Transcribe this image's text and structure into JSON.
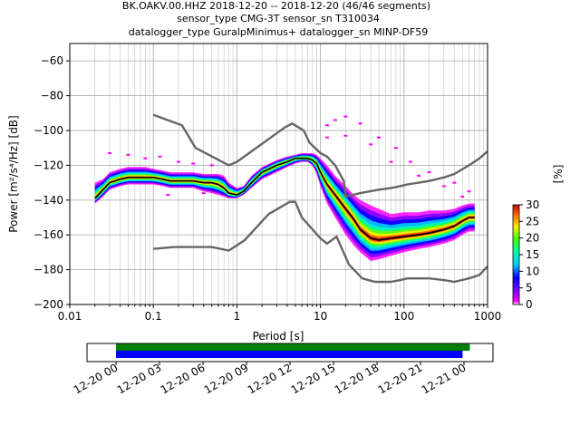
{
  "title": {
    "line1": "BK.OAKV.00.HHZ   2018-12-20 -- 2018-12-20  (46/46 segments)",
    "line2": "sensor_type CMG-3T sensor_sn T310034",
    "line3": "datalogger_type GuralpMinimus+ datalogger_sn MINP-DF59"
  },
  "chart_data": [
    {
      "type": "heatmap",
      "xlabel": "Period [s]",
      "ylabel": "Power [m²/s⁴/Hz] [dB]",
      "x_scale": "log",
      "xlim": [
        0.01,
        1000
      ],
      "ylim": [
        -200,
        -50
      ],
      "x_ticks": [
        0.01,
        0.1,
        1,
        10,
        100,
        1000
      ],
      "x_tick_labels": [
        "0.01",
        "0.1",
        "1",
        "10",
        "100",
        "1000"
      ],
      "y_ticks": [
        -60,
        -80,
        -100,
        -120,
        -140,
        -160,
        -180,
        -200
      ],
      "y_tick_labels": [
        "−60",
        "−80",
        "−100",
        "−120",
        "−140",
        "−160",
        "−180",
        "−200"
      ],
      "grid": true,
      "series": [
        {
          "color": "#666666",
          "x": [
            0.1,
            0.22,
            0.32,
            0.8,
            1.0,
            3.8,
            4.6,
            6.3,
            7.4,
            10,
            12,
            15,
            19,
            20,
            30,
            50,
            70,
            90,
            110,
            150,
            200,
            300,
            400,
            600,
            800,
            1000
          ],
          "y": [
            -91,
            -97,
            -110,
            -120,
            -118,
            -98,
            -96,
            -100,
            -107,
            -113,
            -115,
            -120,
            -129,
            -138,
            -136,
            -134,
            -133,
            -132,
            -131,
            -130,
            -129,
            -127,
            -125,
            -120,
            -116,
            -112
          ]
        },
        {
          "color": "#666666",
          "x": [
            0.1,
            0.18,
            0.5,
            0.8,
            1.24,
            2.4,
            4.3,
            5.0,
            6.0,
            10,
            12,
            15.6,
            21.9,
            31.6,
            45,
            70,
            90,
            110,
            150,
            200,
            300,
            400,
            600,
            800,
            1000
          ],
          "y": [
            -168,
            -167,
            -167,
            -169,
            -163,
            -148,
            -141,
            -141,
            -150,
            -162,
            -165,
            -161,
            -177,
            -185,
            -187,
            -187,
            -186,
            -185,
            -185,
            -185,
            -186,
            -187,
            -185,
            -183,
            -178
          ]
        },
        {
          "color": "#000000",
          "x": [
            0.02,
            0.025,
            0.03,
            0.04,
            0.05,
            0.06,
            0.08,
            0.1,
            0.13,
            0.16,
            0.2,
            0.25,
            0.3,
            0.4,
            0.5,
            0.6,
            0.7,
            0.8,
            1.0,
            1.2,
            1.5,
            2,
            3,
            4,
            5,
            6,
            7,
            8,
            9,
            10,
            12,
            15,
            20,
            25,
            30,
            40,
            50,
            70,
            100,
            150,
            200,
            300,
            400,
            500,
            600,
            700
          ],
          "y": [
            -139,
            -134,
            -130,
            -128,
            -127,
            -127,
            -127,
            -127,
            -128,
            -129,
            -129,
            -129,
            -129,
            -130,
            -130,
            -131,
            -133,
            -136,
            -137,
            -135,
            -130,
            -124,
            -120,
            -118,
            -116,
            -116,
            -116,
            -117,
            -119,
            -124,
            -131,
            -137,
            -145,
            -151,
            -157,
            -162,
            -163,
            -162,
            -161,
            -160,
            -159,
            -157,
            -155,
            -152,
            -150,
            -150
          ]
        }
      ],
      "ppsd_band": {
        "x": [
          0.02,
          0.025,
          0.03,
          0.04,
          0.05,
          0.06,
          0.08,
          0.1,
          0.13,
          0.16,
          0.2,
          0.25,
          0.3,
          0.4,
          0.5,
          0.6,
          0.7,
          0.8,
          1.0,
          1.2,
          1.5,
          2,
          3,
          4,
          5,
          6,
          7,
          8,
          9,
          10,
          12,
          15,
          20,
          25,
          30,
          40,
          50,
          70,
          100,
          150,
          200,
          300,
          400,
          500,
          600,
          700
        ],
        "low": [
          -142,
          -138,
          -134,
          -132,
          -131,
          -131,
          -131,
          -131,
          -132,
          -133,
          -133,
          -133,
          -133,
          -135,
          -136,
          -137,
          -138,
          -139,
          -139,
          -137,
          -133,
          -128,
          -124,
          -121,
          -119,
          -118,
          -118,
          -120,
          -125,
          -132,
          -142,
          -150,
          -160,
          -166,
          -170,
          -175,
          -174,
          -172,
          -170,
          -168,
          -167,
          -165,
          -163,
          -160,
          -158,
          -158
        ],
        "high": [
          -130,
          -128,
          -124,
          -122,
          -121,
          -121,
          -121,
          -122,
          -123,
          -124,
          -124,
          -124,
          -124,
          -125,
          -125,
          -125,
          -126,
          -130,
          -133,
          -132,
          -126,
          -121,
          -117,
          -115,
          -114,
          -113,
          -113,
          -113,
          -114,
          -116,
          -120,
          -126,
          -132,
          -137,
          -140,
          -143,
          -145,
          -148,
          -147,
          -147,
          -146,
          -146,
          -145,
          -143,
          -142,
          -142
        ]
      },
      "colorbar": {
        "label": "[%]",
        "min": 0,
        "max": 30,
        "ticks": [
          0,
          5,
          10,
          15,
          20,
          25,
          30
        ],
        "tick_labels": [
          "0",
          "5",
          "10",
          "15",
          "20",
          "25",
          "30"
        ]
      }
    },
    {
      "type": "bar",
      "xlim_hours": [
        -2,
        26
      ],
      "x_tick_hours": [
        0,
        3,
        6,
        9,
        12,
        15,
        18,
        21,
        24
      ],
      "x_tick_labels": [
        "12-20 00",
        "12-20 03",
        "12-20 06",
        "12-20 09",
        "12-20 12",
        "12-20 15",
        "12-20 18",
        "12-20 21",
        "12-21 00"
      ],
      "series": [
        {
          "color": "#008000",
          "start_hour": 0,
          "end_hour": 24.4
        },
        {
          "color": "#0000ff",
          "start_hour": 0,
          "end_hour": 23.9
        }
      ]
    }
  ]
}
